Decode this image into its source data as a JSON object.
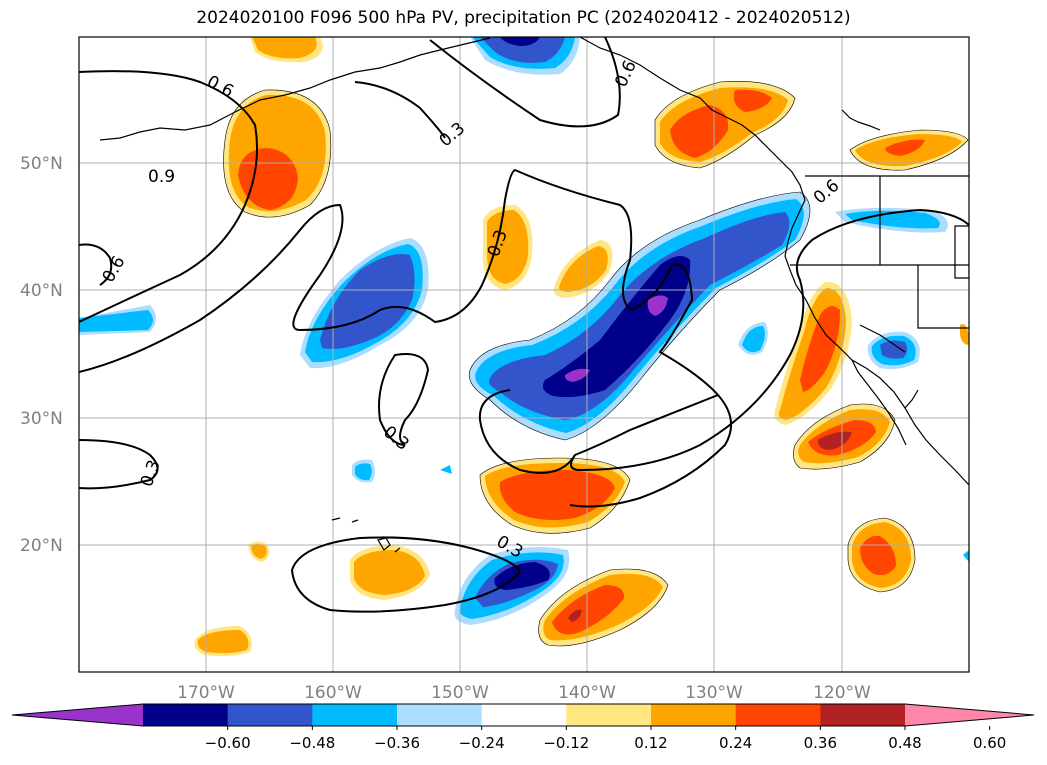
{
  "title": "2024020100 F096 500 hPa PV, precipitation PC (2024020412 - 2024020512)",
  "lat_labels": [
    "50°N",
    "40°N",
    "30°N",
    "20°N"
  ],
  "lon_labels": [
    "170°W",
    "160°W",
    "150°W",
    "140°W",
    "130°W",
    "120°W"
  ],
  "contour_labels": [
    "0.6",
    "0.9",
    "0.3",
    "0.6",
    "0.3",
    "0.6",
    "0.6",
    "0.3",
    "0.3",
    "0.3",
    "0.3"
  ],
  "colorbar": {
    "ticks": [
      "−0.60",
      "−0.48",
      "−0.36",
      "−0.24",
      "−0.12",
      "0.12",
      "0.24",
      "0.36",
      "0.48",
      "0.60"
    ],
    "colors": [
      "#9933cc",
      "#00008b",
      "#3355cc",
      "#00bbff",
      "#aaddff",
      "#ffffff",
      "#ffe680",
      "#ffa500",
      "#ff4500",
      "#b22222",
      "#ff88aa"
    ]
  },
  "palette": {
    "neg_strong": "#00008b",
    "neg_mid": "#3355cc",
    "neg_light": "#00bbff",
    "neg_pale": "#aaddff",
    "pos_pale": "#ffe680",
    "pos_light": "#ffa500",
    "pos_mid": "#ff4500",
    "pos_strong": "#b22222",
    "extreme_neg": "#9933cc"
  }
}
